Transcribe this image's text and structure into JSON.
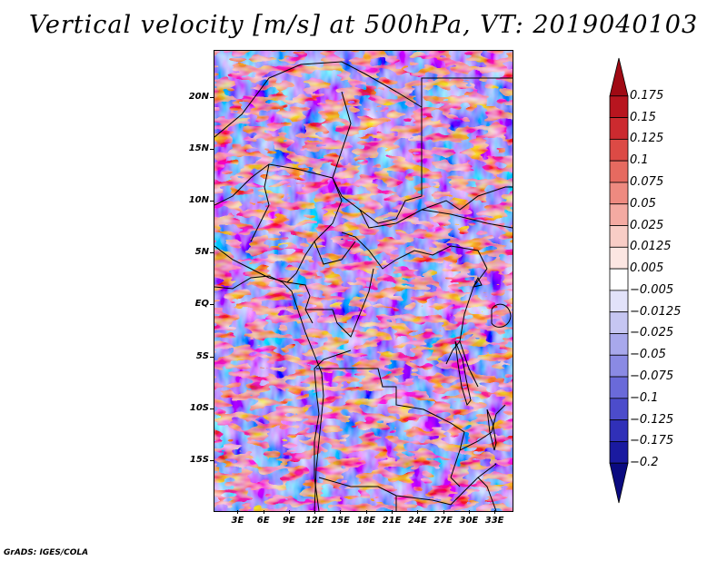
{
  "title": "Vertical velocity [m/s] at 500hPa, VT: 2019040103",
  "credit": "GrADS: IGES/COLA",
  "map": {
    "lat_labels": [
      "20N",
      "15N",
      "10N",
      "5N",
      "EQ",
      "5S",
      "10S",
      "15S"
    ],
    "lat_values": [
      20,
      15,
      10,
      5,
      0,
      -5,
      -10,
      -15
    ],
    "lat_range": [
      -19.8,
      24.5
    ],
    "lon_labels": [
      "3E",
      "6E",
      "9E",
      "12E",
      "15E",
      "18E",
      "21E",
      "24E",
      "27E",
      "30E",
      "33E"
    ],
    "lon_values": [
      3,
      6,
      9,
      12,
      15,
      18,
      21,
      24,
      27,
      30,
      33
    ],
    "lon_range": [
      0.2,
      35.0
    ]
  },
  "colorbar": {
    "labels": [
      "0.175",
      "0.15",
      "0.125",
      "0.1",
      "0.075",
      "0.05",
      "0.025",
      "0.0125",
      "0.005",
      "−0.005",
      "−0.0125",
      "−0.025",
      "−0.05",
      "−0.075",
      "−0.1",
      "−0.125",
      "−0.175",
      "−0.2"
    ],
    "colors": [
      "#a00a14",
      "#b8151f",
      "#cc2a2f",
      "#dc4a45",
      "#e66a60",
      "#ee8a80",
      "#f4aaa2",
      "#f8cdc6",
      "#fce6e2",
      "#ffffff",
      "#e2e2fa",
      "#c6c6f2",
      "#a8a8ec",
      "#8a8ae4",
      "#6a6ad9",
      "#4c4ccb",
      "#3030b8",
      "#1a1aa0",
      "#0a0a80"
    ]
  }
}
